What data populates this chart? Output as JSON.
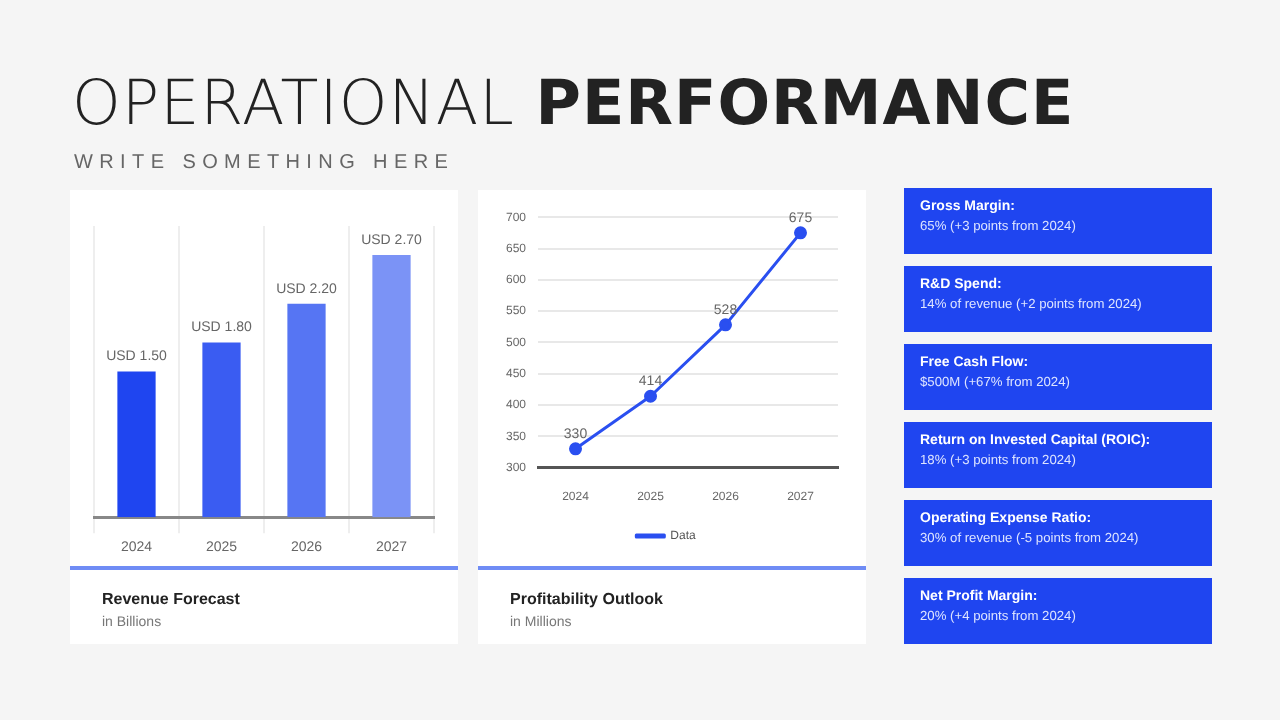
{
  "chart_data": [
    {
      "type": "other",
      "title": "OPERATIONAL PERFORMANCE",
      "subtitle": "WRITE SOMETHING HERE"
    },
    {
      "type": "bar",
      "title": "Revenue Forecast",
      "subtitle": "in Billions",
      "categories": [
        "2024",
        "2025",
        "2026",
        "2027"
      ],
      "values": [
        1.5,
        1.8,
        2.2,
        2.7
      ],
      "colors": [
        "#1f45f0",
        "#3a5cf2",
        "#5675f3",
        "#7b93f6"
      ],
      "value_labels": [
        "USD 1.50",
        "USD 1.80",
        "USD 2.20",
        "USD 2.70"
      ],
      "grid": "x",
      "legend": false,
      "tick_labels": "x"
    },
    {
      "type": "line",
      "title": "Profitability Outlook",
      "subtitle": "in Millions",
      "categories": [
        "2024",
        "2025",
        "2026",
        "2027"
      ],
      "series": [
        {
          "name": "Data",
          "color": "#2a4ff0",
          "values": [
            330,
            414,
            528,
            675
          ]
        }
      ],
      "ylim": [
        300,
        700
      ],
      "yticks": [
        300,
        350,
        400,
        450,
        500,
        550,
        600,
        650,
        700
      ],
      "grid": "y",
      "legend": "bottom",
      "marker": "circle",
      "data_labels": true
    },
    {
      "type": "other",
      "annotations": [
        "Gross Margin:",
        "65% (+3 points from 2024)",
        "R&D Spend:",
        "14% of revenue (+2 points from 2024)",
        "Free Cash Flow:",
        "$500M (+67% from 2024)",
        "Return on Invested Capital (ROIC):",
        "18% (+3 points from 2024)",
        "Operating Expense Ratio:",
        "30% of revenue (-5 points from 2024)",
        "Net Profit Margin:",
        "20% (+4 points from 2024)"
      ]
    }
  ]
}
